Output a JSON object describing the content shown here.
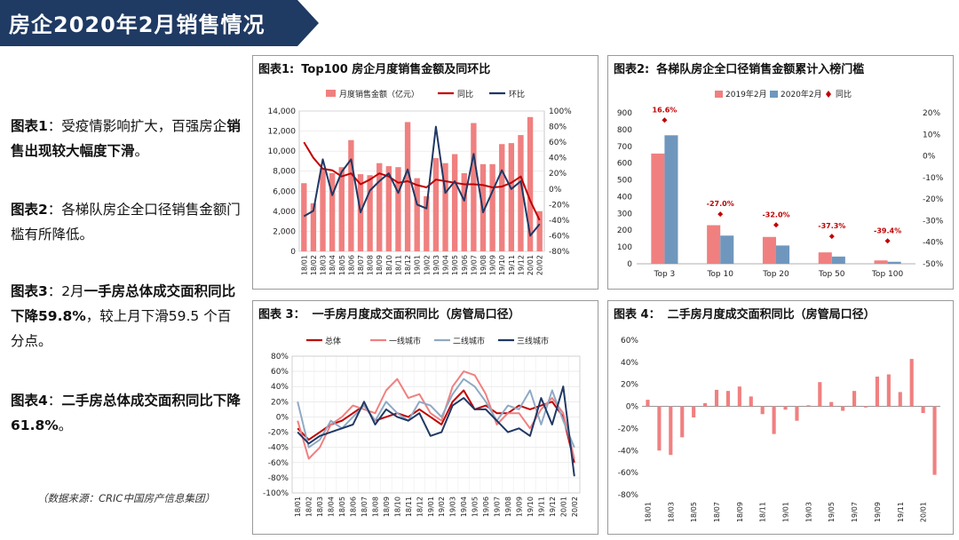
{
  "page": {
    "title": "房企2020年2月销售情况",
    "source": "（数据来源：CRIC中国房产信息集团）"
  },
  "notes": [
    {
      "parts": [
        {
          "t": "图表1",
          "b": true
        },
        {
          "t": "：受疫情影响扩大，百强房企",
          "b": false
        },
        {
          "t": "销售出现较大幅度下滑",
          "b": true
        },
        {
          "t": "。",
          "b": false
        }
      ]
    },
    {
      "parts": [
        {
          "t": "图表2",
          "b": true
        },
        {
          "t": "：各梯队房企全口径销售金额门槛有所降低。",
          "b": false
        }
      ]
    },
    {
      "parts": [
        {
          "t": "图表3",
          "b": true
        },
        {
          "t": "：2月",
          "b": false
        },
        {
          "t": "一手房总体成交面积同比下降59.8%",
          "b": true
        },
        {
          "t": "，较上月下滑59.5 个百分点。",
          "b": false
        }
      ]
    },
    {
      "parts": [
        {
          "t": "图表4",
          "b": true
        },
        {
          "t": "：",
          "b": false
        },
        {
          "t": "二手房总体成交面积同比下降61.8%",
          "b": true
        },
        {
          "t": "。",
          "b": false
        }
      ]
    }
  ],
  "colors": {
    "pink": "#f08080",
    "red": "#c00000",
    "navy": "#1f3864",
    "blue": "#6f97bd",
    "grayblue": "#8fa9c4",
    "darkred": "#c00000"
  },
  "chart_data": [
    {
      "id": "c1",
      "type": "bar",
      "number": "图表1:",
      "title": "Top100 房企月度销售金额及同环比",
      "x": [
        "18/01",
        "18/02",
        "18/03",
        "18/04",
        "18/05",
        "18/06",
        "18/07",
        "18/08",
        "18/09",
        "18/10",
        "18/11",
        "18/12",
        "19/01",
        "19/02",
        "19/03",
        "19/04",
        "19/05",
        "19/06",
        "19/07",
        "19/08",
        "19/09",
        "19/10",
        "19/11",
        "19/12",
        "20/01",
        "20/02"
      ],
      "x_ticks_shown": [
        "18/01",
        "18/02",
        "18/03",
        "18/04",
        "18/05",
        "18/06",
        "18/07",
        "18/08",
        "18/09",
        "18/10",
        "18/11",
        "18/12",
        "19/01",
        "19/02",
        "19/03",
        "19/04",
        "19/05",
        "19/06",
        "19/07",
        "19/08",
        "19/09",
        "19/10",
        "19/11",
        "19/12",
        "20/01",
        "20/02"
      ],
      "y_left": {
        "min": 0,
        "max": 14000,
        "ticks": [
          "0",
          "2,000",
          "4,000",
          "6,000",
          "8,000",
          "10,000",
          "12,000",
          "14,000"
        ]
      },
      "y_right": {
        "min": -80,
        "max": 100,
        "ticks": [
          "-80%",
          "-60%",
          "-40%",
          "-20%",
          "0%",
          "20%",
          "40%",
          "60%",
          "80%",
          "100%"
        ]
      },
      "series": [
        {
          "name": "月度销售金额（亿元）",
          "kind": "bar",
          "axis": "left",
          "color": "#f08080",
          "values": [
            6800,
            4800,
            8300,
            7800,
            8400,
            11100,
            7700,
            7600,
            8800,
            8500,
            8400,
            12900,
            7300,
            5500,
            9300,
            8800,
            9700,
            7800,
            12800,
            8700,
            8700,
            10700,
            10800,
            11600,
            13400,
            4000
          ]
        },
        {
          "name": "同比",
          "kind": "line",
          "axis": "right",
          "color": "#c00000",
          "values": [
            60,
            40,
            26,
            24,
            16,
            20,
            6,
            12,
            20,
            16,
            8,
            10,
            5,
            2,
            12,
            10,
            8,
            6,
            6,
            5,
            2,
            3,
            8,
            16,
            -15,
            -40
          ]
        },
        {
          "name": "环比",
          "kind": "line",
          "axis": "right",
          "color": "#1f3864",
          "values": [
            -35,
            -28,
            38,
            -8,
            22,
            38,
            -30,
            -2,
            10,
            20,
            -5,
            25,
            -20,
            -25,
            80,
            -5,
            10,
            -15,
            45,
            -30,
            -3,
            24,
            0,
            10,
            -60,
            -45
          ]
        }
      ]
    },
    {
      "id": "c2",
      "type": "bar",
      "number": "图表2:",
      "title": "各梯队房企全口径销售金额累计入榜门槛",
      "categories": [
        "Top 3",
        "Top 10",
        "Top 20",
        "Top 50",
        "Top 100"
      ],
      "y_left": {
        "min": 0,
        "max": 900,
        "ticks": [
          "0",
          "100",
          "200",
          "300",
          "400",
          "500",
          "600",
          "700",
          "800",
          "900"
        ]
      },
      "y_right": {
        "min": -50,
        "max": 20,
        "ticks": [
          "-50%",
          "-40%",
          "-30%",
          "-20%",
          "-10%",
          "0%",
          "10%",
          "20%"
        ]
      },
      "series": [
        {
          "name": "2019年2月",
          "kind": "bar",
          "color": "#f08080",
          "values": [
            657,
            230,
            160,
            68,
            20
          ]
        },
        {
          "name": "2020年2月",
          "kind": "bar",
          "color": "#6f97bd",
          "values": [
            766,
            168,
            109,
            43,
            12
          ]
        },
        {
          "name": "同比",
          "kind": "point",
          "color": "#c00000",
          "values": [
            16.6,
            -27.0,
            -32.0,
            -37.3,
            -39.4
          ]
        }
      ],
      "labels": [
        "16.6%",
        "-27.0%",
        "-32.0%",
        "-37.3%",
        "-39.4%"
      ]
    },
    {
      "id": "c3",
      "type": "line",
      "number": "图表 3：",
      "title": "一手房月度成交面积同比（房管局口径）",
      "x": [
        "18/01",
        "18/02",
        "18/03",
        "18/04",
        "18/05",
        "18/06",
        "18/07",
        "18/08",
        "18/09",
        "18/10",
        "18/11",
        "18/12",
        "19/01",
        "19/02",
        "19/03",
        "19/04",
        "19/05",
        "19/06",
        "19/07",
        "19/08",
        "19/09",
        "19/10",
        "19/11",
        "19/12",
        "20/01",
        "20/02"
      ],
      "y": {
        "min": -100,
        "max": 80,
        "ticks": [
          "-100%",
          "-80%",
          "-60%",
          "-40%",
          "-20%",
          "0%",
          "20%",
          "40%",
          "60%",
          "80%"
        ]
      },
      "series": [
        {
          "name": "总体",
          "color": "#c00000",
          "values": [
            -15,
            -30,
            -20,
            -10,
            -5,
            5,
            15,
            -5,
            0,
            5,
            0,
            10,
            0,
            -10,
            20,
            35,
            10,
            15,
            5,
            5,
            15,
            10,
            15,
            20,
            0,
            -60
          ]
        },
        {
          "name": "一线城市",
          "color": "#f08080",
          "values": [
            -5,
            -55,
            -40,
            -10,
            0,
            15,
            10,
            5,
            35,
            50,
            25,
            30,
            5,
            -5,
            40,
            60,
            55,
            30,
            -10,
            5,
            5,
            -15,
            10,
            25,
            5,
            -55
          ]
        },
        {
          "name": "二线城市",
          "color": "#8fa9c4",
          "values": [
            20,
            -40,
            -30,
            -5,
            -15,
            0,
            15,
            -5,
            20,
            5,
            -5,
            20,
            15,
            0,
            30,
            50,
            40,
            20,
            -5,
            15,
            10,
            35,
            -10,
            35,
            -5,
            -40
          ]
        },
        {
          "name": "三线城市",
          "color": "#1f3864",
          "values": [
            -20,
            -35,
            -25,
            -20,
            -15,
            -10,
            20,
            -10,
            10,
            0,
            -5,
            5,
            -25,
            -20,
            15,
            25,
            10,
            10,
            -5,
            -20,
            -15,
            -25,
            25,
            -10,
            40,
            -78
          ]
        }
      ]
    },
    {
      "id": "c4",
      "type": "bar",
      "number": "图表 4：",
      "title": "二手房月度成交面积同比（房管局口径）",
      "x": [
        "18/01",
        "18/02",
        "18/03",
        "18/04",
        "18/05",
        "18/06",
        "18/07",
        "18/08",
        "18/09",
        "18/10",
        "18/11",
        "18/12",
        "19/01",
        "19/02",
        "19/03",
        "19/04",
        "19/05",
        "19/06",
        "19/07",
        "19/08",
        "19/09",
        "19/10",
        "19/11",
        "19/12",
        "20/01",
        "20/02"
      ],
      "x_ticks_shown": [
        "18/01",
        "18/03",
        "18/05",
        "18/07",
        "18/09",
        "18/11",
        "19/01",
        "19/03",
        "19/05",
        "19/07",
        "19/09",
        "19/11",
        "20/01"
      ],
      "y": {
        "min": -80,
        "max": 60,
        "ticks": [
          "-80%",
          "-60%",
          "-40%",
          "-20%",
          "0%",
          "20%",
          "40%",
          "60%"
        ]
      },
      "series": [
        {
          "name": "同比",
          "color": "#f08080",
          "values": [
            6,
            -40,
            -44,
            -28,
            -10,
            3,
            15,
            14,
            18,
            9,
            -7,
            -25,
            -3,
            -13,
            1,
            22,
            4,
            -4,
            14,
            -1,
            27,
            29,
            13,
            43,
            -6,
            -62
          ]
        }
      ]
    }
  ]
}
